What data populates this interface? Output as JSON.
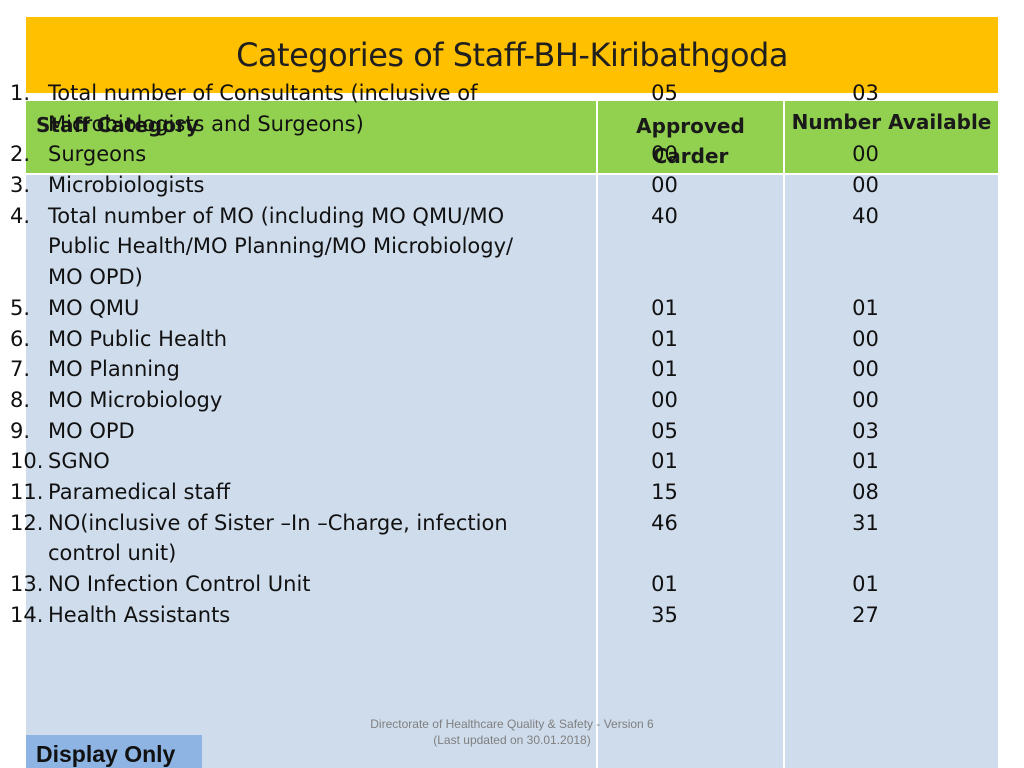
{
  "title": "Categories of Staff-BH-Kiribathgoda",
  "table": {
    "headers": {
      "category": "Staff Category",
      "approved": "Approved Carder",
      "available": "Number Available"
    },
    "rows": [
      {
        "no": "1.",
        "label": "Total number of Consultants (inclusive of Microbiologists and Surgeons)",
        "approved": "05",
        "available": "03",
        "lines": 2
      },
      {
        "no": "2.",
        "label": "Surgeons",
        "approved": "00",
        "available": "00",
        "lines": 1
      },
      {
        "no": "3.",
        "label": "Microbiologists",
        "approved": "00",
        "available": "00",
        "lines": 1
      },
      {
        "no": "4.",
        "label": "Total number of MO (including MO QMU/MO Public Health/MO Planning/MO Microbiology/ MO OPD)",
        "approved": "40",
        "available": "40",
        "lines": 3
      },
      {
        "no": "5.",
        "label": "MO QMU",
        "approved": "01",
        "available": "01",
        "lines": 1
      },
      {
        "no": "6.",
        "label": "MO Public Health",
        "approved": "01",
        "available": "00",
        "lines": 1
      },
      {
        "no": "7.",
        "label": "MO Planning",
        "approved": "01",
        "available": "00",
        "lines": 1
      },
      {
        "no": "8.",
        "label": "MO Microbiology",
        "approved": "00",
        "available": "00",
        "lines": 1
      },
      {
        "no": "9.",
        "label": "MO OPD",
        "approved": "05",
        "available": "03",
        "lines": 1
      },
      {
        "no": "10.",
        "label": "SGNO",
        "approved": "01",
        "available": "01",
        "lines": 1
      },
      {
        "no": "11.",
        "label": "Paramedical staff",
        "approved": "15",
        "available": "08",
        "lines": 1
      },
      {
        "no": "12.",
        "label": "NO(inclusive of Sister –In –Charge, infection control unit)",
        "approved": "46",
        "available": "31",
        "lines": 2
      },
      {
        "no": "13.",
        "label": "NO Infection Control Unit",
        "approved": "01",
        "available": "01",
        "lines": 1
      },
      {
        "no": "14.",
        "label": "Health Assistants",
        "approved": "35",
        "available": "27",
        "lines": 1
      }
    ]
  },
  "footer": {
    "line1": "Directorate of Healthcare Quality & Safety - Version 6",
    "line2": "(Last updated on 30.01.2018)"
  },
  "badge": "Display Only",
  "colors": {
    "title_bg": "#ffc000",
    "header_bg": "#92d050",
    "body_bg": "#cfdcec",
    "badge_bg": "#8db4e2"
  }
}
